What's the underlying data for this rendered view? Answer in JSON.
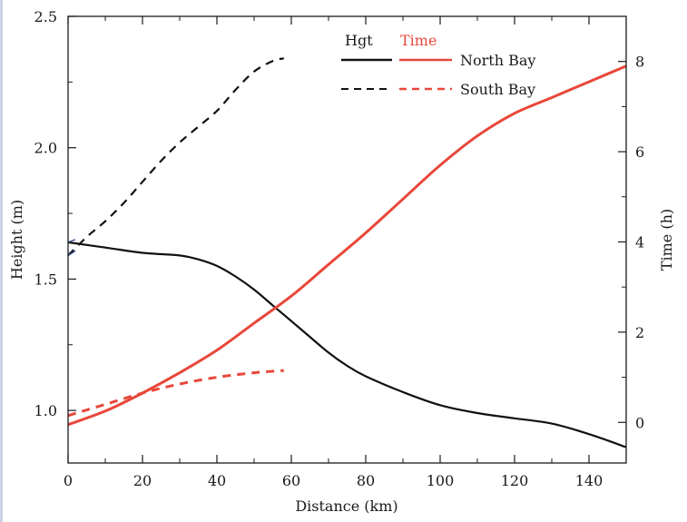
{
  "colors": {
    "height_series": "#111111",
    "time_series": "#e8473a",
    "axis": "#1a1a1a",
    "frame_accent": "#c9d3e6",
    "left_edge_marks": "#3a4a8c"
  },
  "chart_data": {
    "type": "line",
    "title": "",
    "xlabel": "Distance (km)",
    "ylabel": "Height (m)",
    "y2label": "Time (h)",
    "xlim": [
      0,
      150
    ],
    "ylim": [
      0.8,
      2.5
    ],
    "y2lim": [
      -0.9,
      9
    ],
    "grid": false,
    "x_ticks": [
      "0",
      "20",
      "40",
      "60",
      "80",
      "100",
      "120",
      "140"
    ],
    "y_ticks": [
      "1.0",
      "1.5",
      "2.0",
      "2.5"
    ],
    "y2_ticks": [
      "0",
      "2",
      "4",
      "6",
      "8"
    ],
    "legend": {
      "position": "top-right",
      "col_headers": [
        "Hgt",
        "Time"
      ],
      "rows": [
        "North Bay",
        "South Bay"
      ]
    },
    "series": [
      {
        "name": "North Bay",
        "quantity": "Hgt",
        "axis": "left",
        "style": "solid",
        "x": [
          0,
          10,
          20,
          30,
          35,
          40,
          45,
          50,
          55,
          60,
          65,
          70,
          75,
          80,
          90,
          100,
          110,
          120,
          130,
          140,
          150
        ],
        "y": [
          1.64,
          1.62,
          1.6,
          1.59,
          1.575,
          1.55,
          1.51,
          1.46,
          1.4,
          1.34,
          1.28,
          1.22,
          1.17,
          1.13,
          1.07,
          1.02,
          0.99,
          0.97,
          0.95,
          0.91,
          0.86
        ]
      },
      {
        "name": "South Bay",
        "quantity": "Hgt",
        "axis": "left",
        "style": "dashed",
        "x": [
          0,
          5,
          10,
          15,
          20,
          25,
          30,
          35,
          40,
          45,
          50,
          55,
          58
        ],
        "y": [
          1.59,
          1.66,
          1.72,
          1.79,
          1.87,
          1.95,
          2.02,
          2.08,
          2.14,
          2.22,
          2.29,
          2.33,
          2.34
        ]
      },
      {
        "name": "North Bay",
        "quantity": "Time",
        "axis": "right",
        "style": "solid",
        "x": [
          0,
          10,
          20,
          30,
          40,
          50,
          60,
          70,
          80,
          90,
          100,
          110,
          120,
          130,
          140,
          150
        ],
        "y": [
          -0.05,
          0.25,
          0.65,
          1.1,
          1.6,
          2.2,
          2.8,
          3.5,
          4.2,
          4.95,
          5.7,
          6.35,
          6.85,
          7.2,
          7.55,
          7.9
        ]
      },
      {
        "name": "South Bay",
        "quantity": "Time",
        "axis": "right",
        "style": "dashed",
        "x": [
          0,
          10,
          20,
          30,
          40,
          50,
          58
        ],
        "y": [
          0.15,
          0.4,
          0.65,
          0.85,
          1.0,
          1.1,
          1.15
        ]
      }
    ]
  }
}
